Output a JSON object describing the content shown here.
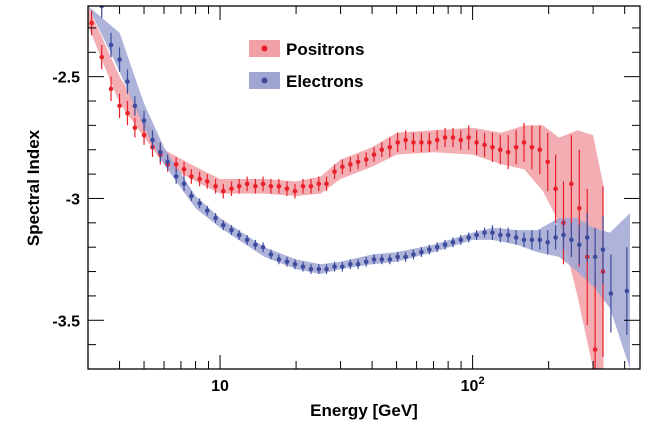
{
  "chart_data": {
    "type": "scatter",
    "title": "",
    "xlabel": "Energy [GeV]",
    "ylabel": "Spectral Index",
    "xscale": "log",
    "xlim": [
      3,
      460
    ],
    "ylim": [
      -3.7,
      -2.21
    ],
    "x_ticks": [
      {
        "value": 10,
        "label": "10",
        "sup": ""
      },
      {
        "value": 100,
        "label": "10",
        "sup": "2"
      }
    ],
    "y_ticks": [
      {
        "value": -2.5,
        "label": "-2.5"
      },
      {
        "value": -3,
        "label": "-3"
      },
      {
        "value": -3.5,
        "label": "-3.5"
      }
    ],
    "legend_position": "top-center",
    "series": [
      {
        "name": "Positrons",
        "color": "#e8202a",
        "band_color": "#f0a0a6",
        "points": [
          [
            3.1,
            -2.28,
            0.05
          ],
          [
            3.4,
            -2.42,
            0.05
          ],
          [
            3.7,
            -2.55,
            0.05
          ],
          [
            4.0,
            -2.62,
            0.05
          ],
          [
            4.3,
            -2.65,
            0.05
          ],
          [
            4.6,
            -2.71,
            0.04
          ],
          [
            5.0,
            -2.74,
            0.04
          ],
          [
            5.4,
            -2.79,
            0.04
          ],
          [
            5.8,
            -2.82,
            0.04
          ],
          [
            6.2,
            -2.86,
            0.03
          ],
          [
            6.7,
            -2.86,
            0.03
          ],
          [
            7.2,
            -2.88,
            0.03
          ],
          [
            7.7,
            -2.91,
            0.03
          ],
          [
            8.3,
            -2.92,
            0.03
          ],
          [
            8.9,
            -2.93,
            0.03
          ],
          [
            9.6,
            -2.95,
            0.03
          ],
          [
            10.3,
            -2.97,
            0.03
          ],
          [
            11.1,
            -2.96,
            0.03
          ],
          [
            11.9,
            -2.95,
            0.03
          ],
          [
            12.8,
            -2.94,
            0.03
          ],
          [
            13.8,
            -2.95,
            0.03
          ],
          [
            14.8,
            -2.94,
            0.03
          ],
          [
            15.9,
            -2.95,
            0.03
          ],
          [
            17.1,
            -2.95,
            0.03
          ],
          [
            18.4,
            -2.96,
            0.03
          ],
          [
            19.8,
            -2.97,
            0.03
          ],
          [
            21.3,
            -2.95,
            0.03
          ],
          [
            22.9,
            -2.95,
            0.03
          ],
          [
            24.6,
            -2.94,
            0.03
          ],
          [
            26.4,
            -2.94,
            0.03
          ],
          [
            28.4,
            -2.89,
            0.03
          ],
          [
            30.5,
            -2.87,
            0.03
          ],
          [
            32.8,
            -2.86,
            0.03
          ],
          [
            35.2,
            -2.85,
            0.03
          ],
          [
            37.9,
            -2.84,
            0.03
          ],
          [
            40.7,
            -2.82,
            0.03
          ],
          [
            43.7,
            -2.8,
            0.03
          ],
          [
            47.0,
            -2.79,
            0.04
          ],
          [
            50.5,
            -2.77,
            0.04
          ],
          [
            54.3,
            -2.76,
            0.04
          ],
          [
            58.3,
            -2.77,
            0.04
          ],
          [
            62.7,
            -2.77,
            0.04
          ],
          [
            67.4,
            -2.77,
            0.04
          ],
          [
            72.4,
            -2.76,
            0.04
          ],
          [
            77.8,
            -2.75,
            0.04
          ],
          [
            83.6,
            -2.75,
            0.04
          ],
          [
            89.8,
            -2.76,
            0.04
          ],
          [
            96.5,
            -2.75,
            0.05
          ],
          [
            103.7,
            -2.77,
            0.05
          ],
          [
            111.5,
            -2.78,
            0.05
          ],
          [
            119.8,
            -2.79,
            0.06
          ],
          [
            128.7,
            -2.8,
            0.06
          ],
          [
            138.3,
            -2.81,
            0.07
          ],
          [
            148.7,
            -2.79,
            0.07
          ],
          [
            159.8,
            -2.77,
            0.08
          ],
          [
            171.7,
            -2.79,
            0.09
          ],
          [
            184.5,
            -2.8,
            0.1
          ],
          [
            198.3,
            -2.85,
            0.12
          ],
          [
            213.1,
            -2.96,
            0.14
          ],
          [
            229.0,
            -3.1,
            0.17
          ],
          [
            246.1,
            -2.94,
            0.2
          ],
          [
            264.5,
            -3.04,
            0.24
          ],
          [
            284.3,
            -3.24,
            0.28
          ],
          [
            305.5,
            -3.62,
            0.32
          ],
          [
            328.3,
            -3.3,
            0.35
          ]
        ],
        "band": [
          [
            3.0,
            -2.29,
            -2.21
          ],
          [
            4.0,
            -2.61,
            -2.5
          ],
          [
            6.0,
            -2.86,
            -2.8
          ],
          [
            8.0,
            -2.93,
            -2.87
          ],
          [
            10.0,
            -2.98,
            -2.92
          ],
          [
            15.0,
            -2.98,
            -2.92
          ],
          [
            20.0,
            -2.99,
            -2.93
          ],
          [
            25.0,
            -2.98,
            -2.91
          ],
          [
            30.0,
            -2.92,
            -2.84
          ],
          [
            40.0,
            -2.87,
            -2.79
          ],
          [
            50.0,
            -2.82,
            -2.73
          ],
          [
            70.0,
            -2.81,
            -2.72
          ],
          [
            100.0,
            -2.82,
            -2.71
          ],
          [
            130.0,
            -2.86,
            -2.73
          ],
          [
            160.0,
            -2.88,
            -2.7
          ],
          [
            190.0,
            -2.97,
            -2.7
          ],
          [
            220.0,
            -3.1,
            -2.75
          ],
          [
            260.0,
            -3.4,
            -2.72
          ],
          [
            300.0,
            -3.7,
            -2.74
          ],
          [
            330.0,
            -3.7,
            -2.95
          ]
        ]
      },
      {
        "name": "Electrons",
        "color": "#3c4b9c",
        "band_color": "#9fa6d2",
        "points": [
          [
            3.4,
            -2.21,
            0.05
          ],
          [
            3.7,
            -2.37,
            0.05
          ],
          [
            4.0,
            -2.43,
            0.05
          ],
          [
            4.3,
            -2.52,
            0.05
          ],
          [
            4.6,
            -2.62,
            0.04
          ],
          [
            5.0,
            -2.68,
            0.04
          ],
          [
            5.4,
            -2.76,
            0.04
          ],
          [
            5.8,
            -2.81,
            0.04
          ],
          [
            6.2,
            -2.85,
            0.03
          ],
          [
            6.7,
            -2.91,
            0.03
          ],
          [
            7.2,
            -2.94,
            0.03
          ],
          [
            7.7,
            -2.99,
            0.02
          ],
          [
            8.3,
            -3.02,
            0.02
          ],
          [
            8.9,
            -3.05,
            0.02
          ],
          [
            9.6,
            -3.08,
            0.02
          ],
          [
            10.3,
            -3.11,
            0.02
          ],
          [
            11.1,
            -3.13,
            0.02
          ],
          [
            11.9,
            -3.15,
            0.02
          ],
          [
            12.8,
            -3.17,
            0.02
          ],
          [
            13.8,
            -3.19,
            0.02
          ],
          [
            14.8,
            -3.2,
            0.02
          ],
          [
            15.9,
            -3.23,
            0.02
          ],
          [
            17.1,
            -3.25,
            0.02
          ],
          [
            18.4,
            -3.26,
            0.02
          ],
          [
            19.8,
            -3.27,
            0.02
          ],
          [
            21.3,
            -3.28,
            0.02
          ],
          [
            22.9,
            -3.29,
            0.02
          ],
          [
            24.6,
            -3.29,
            0.02
          ],
          [
            26.4,
            -3.29,
            0.02
          ],
          [
            28.4,
            -3.28,
            0.02
          ],
          [
            30.5,
            -3.28,
            0.02
          ],
          [
            32.8,
            -3.27,
            0.02
          ],
          [
            35.2,
            -3.27,
            0.02
          ],
          [
            37.9,
            -3.26,
            0.02
          ],
          [
            40.7,
            -3.25,
            0.02
          ],
          [
            43.7,
            -3.25,
            0.02
          ],
          [
            47.0,
            -3.25,
            0.02
          ],
          [
            50.5,
            -3.24,
            0.02
          ],
          [
            54.3,
            -3.24,
            0.02
          ],
          [
            58.3,
            -3.23,
            0.02
          ],
          [
            62.7,
            -3.22,
            0.02
          ],
          [
            67.4,
            -3.21,
            0.02
          ],
          [
            72.4,
            -3.2,
            0.02
          ],
          [
            77.8,
            -3.19,
            0.02
          ],
          [
            83.6,
            -3.18,
            0.02
          ],
          [
            89.8,
            -3.17,
            0.02
          ],
          [
            96.5,
            -3.16,
            0.02
          ],
          [
            103.7,
            -3.15,
            0.02
          ],
          [
            111.5,
            -3.14,
            0.02
          ],
          [
            119.8,
            -3.14,
            0.03
          ],
          [
            128.7,
            -3.15,
            0.03
          ],
          [
            138.3,
            -3.15,
            0.03
          ],
          [
            148.7,
            -3.16,
            0.03
          ],
          [
            159.8,
            -3.17,
            0.03
          ],
          [
            171.7,
            -3.17,
            0.04
          ],
          [
            184.5,
            -3.17,
            0.04
          ],
          [
            198.3,
            -3.18,
            0.05
          ],
          [
            213.1,
            -3.16,
            0.05
          ],
          [
            229.0,
            -3.15,
            0.06
          ],
          [
            246.1,
            -3.17,
            0.07
          ],
          [
            264.5,
            -3.19,
            0.08
          ],
          [
            284.3,
            -3.16,
            0.1
          ],
          [
            305.5,
            -3.24,
            0.12
          ],
          [
            328.3,
            -3.21,
            0.14
          ],
          [
            352.8,
            -3.39,
            0.16
          ],
          [
            408.0,
            -3.38,
            0.18
          ]
        ],
        "band": [
          [
            3.0,
            -2.21,
            -2.21
          ],
          [
            4.0,
            -2.48,
            -2.32
          ],
          [
            5.0,
            -2.71,
            -2.61
          ],
          [
            6.0,
            -2.86,
            -2.79
          ],
          [
            8.0,
            -3.04,
            -2.99
          ],
          [
            10.0,
            -3.12,
            -3.08
          ],
          [
            15.0,
            -3.24,
            -3.2
          ],
          [
            20.0,
            -3.29,
            -3.25
          ],
          [
            25.0,
            -3.31,
            -3.27
          ],
          [
            30.0,
            -3.29,
            -3.26
          ],
          [
            40.0,
            -3.27,
            -3.23
          ],
          [
            50.0,
            -3.26,
            -3.22
          ],
          [
            70.0,
            -3.22,
            -3.19
          ],
          [
            100.0,
            -3.17,
            -3.14
          ],
          [
            120.0,
            -3.17,
            -3.12
          ],
          [
            150.0,
            -3.19,
            -3.13
          ],
          [
            180.0,
            -3.22,
            -3.13
          ],
          [
            220.0,
            -3.24,
            -3.08
          ],
          [
            260.0,
            -3.3,
            -3.08
          ],
          [
            300.0,
            -3.36,
            -3.12
          ],
          [
            350.0,
            -3.45,
            -3.14
          ],
          [
            420.0,
            -3.7,
            -3.06
          ]
        ]
      }
    ]
  }
}
